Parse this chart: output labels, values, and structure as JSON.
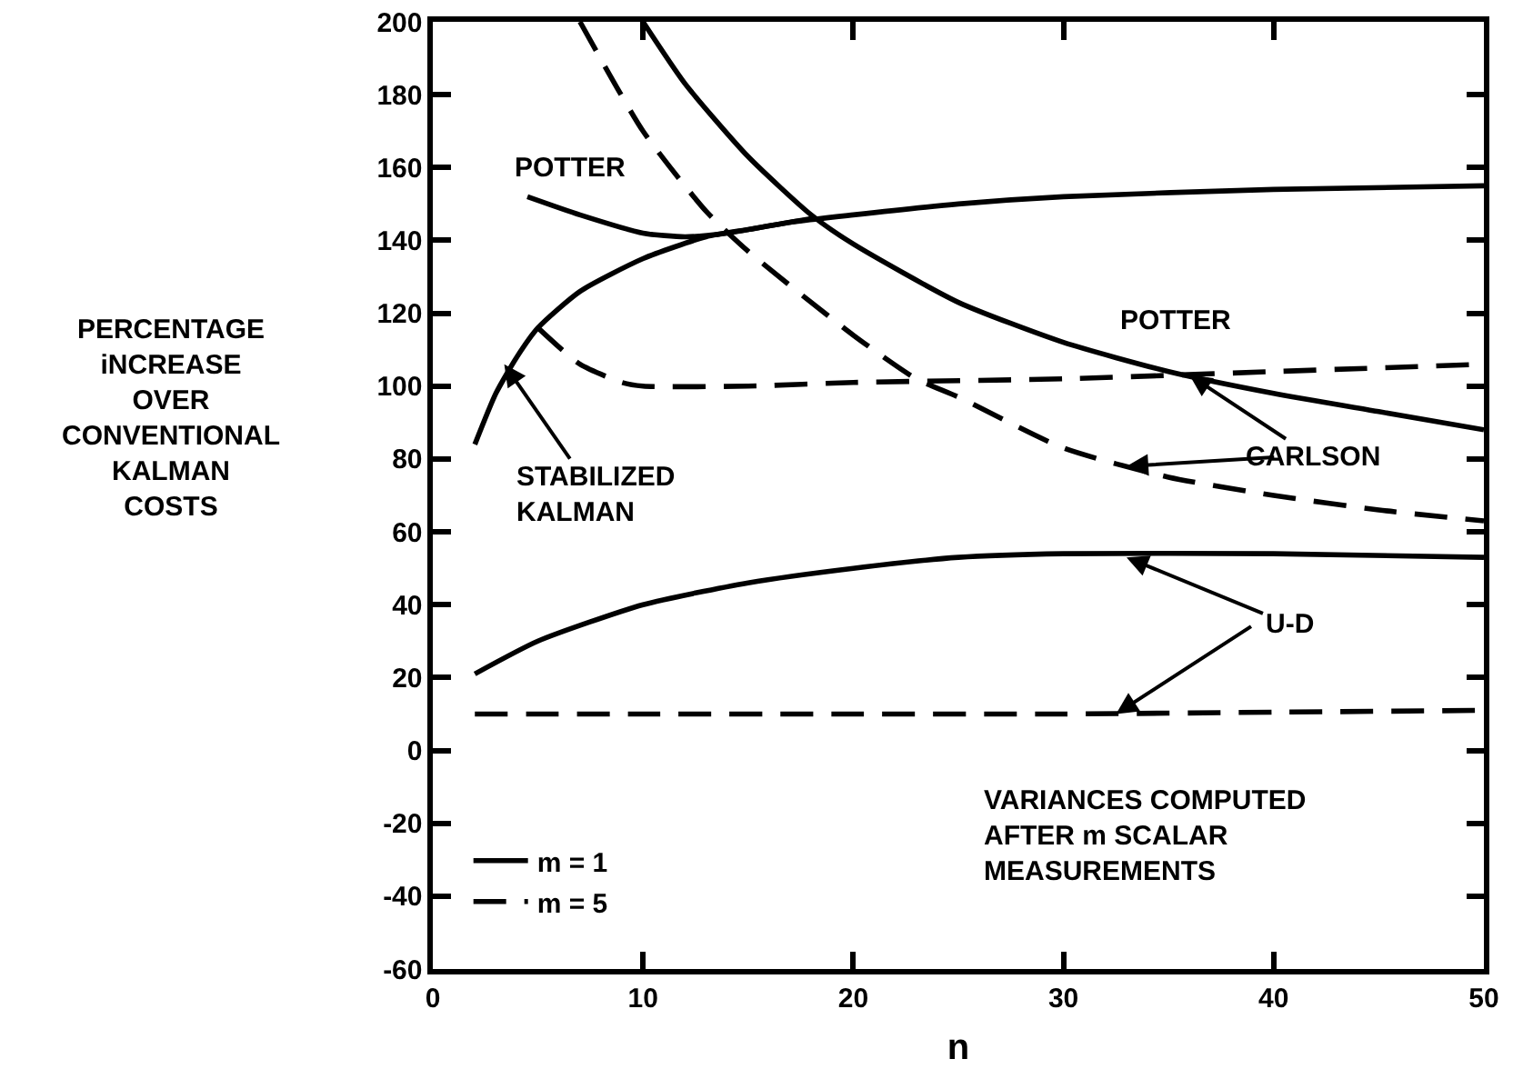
{
  "chart_data": {
    "type": "line",
    "xlabel": "n",
    "ylabel": "PERCENTAGE\niNCREASE\nOVER\nCONVENTIONAL\nKALMAN\nCOSTS",
    "xlim": [
      0,
      50
    ],
    "xticks": [
      0,
      10,
      20,
      30,
      40,
      50
    ],
    "ylim": [
      -60,
      200
    ],
    "yticks": [
      -60,
      -40,
      -20,
      0,
      20,
      40,
      60,
      80,
      100,
      120,
      140,
      160,
      180,
      200
    ],
    "grid": false,
    "legend": "bottom left",
    "marker": "none",
    "series": [
      {
        "name": "m = 1",
        "color": "#000000",
        "line_style": "solid",
        "x": [
          4.5,
          7,
          10,
          12,
          14,
          17,
          20,
          25,
          30,
          40,
          50
        ],
        "values": [
          152,
          147,
          142,
          141,
          142,
          145,
          147,
          150,
          152,
          154,
          155
        ]
      },
      {
        "name": "m = 5",
        "color": "#000000",
        "line_style": "dashed",
        "x": [
          5,
          7,
          9,
          10,
          15,
          20,
          30,
          40,
          50
        ],
        "values": [
          116,
          106,
          101,
          100,
          100,
          101,
          102,
          104,
          106
        ]
      },
      {
        "color": "#000000",
        "line_style": "solid",
        "x": [
          2,
          3,
          4,
          5,
          7,
          10,
          13,
          15,
          18
        ],
        "values": [
          84,
          98,
          108,
          116,
          126,
          135,
          141,
          143,
          146
        ]
      },
      {
        "color": "#000000",
        "line_style": "solid",
        "x": [
          10,
          12,
          15,
          18,
          20,
          25,
          30,
          35,
          40,
          45,
          50
        ],
        "values": [
          200,
          183,
          163,
          147,
          139,
          123,
          112,
          104,
          98,
          93,
          88
        ]
      },
      {
        "color": "#000000",
        "line_style": "dashed",
        "x": [
          7,
          10,
          13,
          15,
          20,
          23,
          25,
          30,
          35,
          40,
          45,
          50
        ],
        "values": [
          200,
          170,
          148,
          137,
          114,
          102,
          97,
          83,
          75,
          70,
          66,
          63
        ]
      },
      {
        "color": "#000000",
        "line_style": "solid",
        "x": [
          2,
          5,
          10,
          15,
          20,
          25,
          30,
          40,
          50
        ],
        "values": [
          21,
          30,
          40,
          46,
          50,
          53,
          54,
          54,
          53
        ]
      },
      {
        "color": "#000000",
        "line_style": "dashed",
        "x": [
          2,
          10,
          20,
          30,
          40,
          50
        ],
        "values": [
          10,
          10,
          10,
          10,
          10.5,
          11
        ]
      }
    ],
    "annotations": [
      "POTTER",
      {
        "text": "STABILIZED\nKALMAN",
        "x": 3.4,
        "y": 106
      },
      "POTTER",
      {
        "text": "CARLSON",
        "x": 36,
        "y": 103
      },
      {
        "text": "U-D",
        "x": 33,
        "y": 53
      },
      "VARIANCES COMPUTED\nAFTER m SCALAR\nMEASUREMENTS"
    ]
  }
}
